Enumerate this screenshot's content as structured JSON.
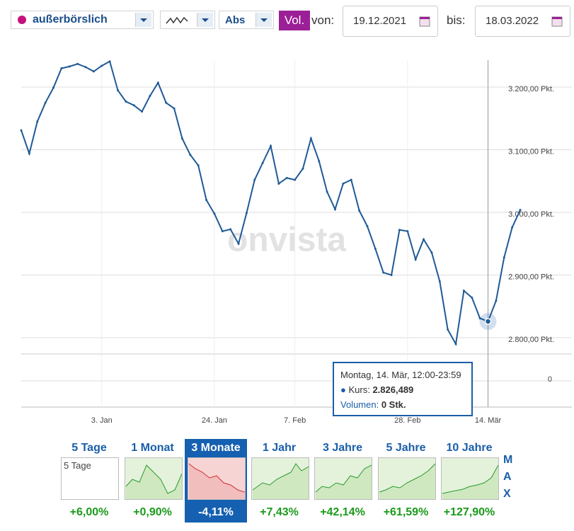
{
  "toolbar": {
    "exchange": "außerbörslich",
    "mode": "Abs",
    "volume": "Vol.",
    "from_label": "von:",
    "from": "19.12.2021",
    "to_label": "bis:",
    "to": "18.03.2022"
  },
  "chart_data": {
    "type": "line",
    "watermark": "onvista",
    "categories": [
      null,
      null,
      null,
      null,
      null,
      null,
      null,
      null,
      null,
      null,
      "3. Jan",
      null,
      null,
      null,
      null,
      null,
      null,
      null,
      null,
      null,
      null,
      null,
      null,
      null,
      "24. Jan",
      null,
      null,
      null,
      null,
      null,
      null,
      null,
      null,
      null,
      "7. Feb",
      null,
      null,
      null,
      null,
      null,
      null,
      null,
      null,
      null,
      null,
      null,
      null,
      null,
      "28. Feb",
      null,
      null,
      null,
      null,
      null,
      null,
      null,
      null,
      null,
      "14. Mär",
      null,
      null,
      null,
      null
    ],
    "series": [
      {
        "color": "#1f5a96",
        "values": [
          3131,
          3094,
          3145,
          3175,
          3199,
          3230,
          3233,
          3237,
          3232,
          3225,
          3234,
          3241,
          3195,
          3177,
          3171,
          3161,
          3186,
          3207,
          3175,
          3166,
          3118,
          3092,
          3075,
          3020,
          2998,
          2970,
          2973,
          2950,
          2999,
          3052,
          3079,
          3106,
          3046,
          3055,
          3052,
          3070,
          3118,
          3082,
          3033,
          3005,
          3046,
          3052,
          3003,
          2978,
          2942,
          2904,
          2900,
          2972,
          2970,
          2925,
          2957,
          2936,
          2890,
          2813,
          2790,
          2875,
          2864,
          2831,
          2826,
          2859,
          2928,
          2976,
          3004
        ]
      }
    ],
    "ylim": [
      2774,
      3243
    ],
    "yticks": [
      {
        "value": 2800,
        "label": "2.800,00 Pkt."
      },
      {
        "value": 2900,
        "label": "2.900,00 Pkt."
      },
      {
        "value": 3000,
        "label": "3.000,00 Pkt."
      },
      {
        "value": 3100,
        "label": "3.100,00 Pkt."
      },
      {
        "value": 3200,
        "label": "3.200,00 Pkt."
      }
    ],
    "volume_ticks": [
      0
    ],
    "grid": true
  },
  "tooltip": {
    "date": "Montag, 14. Mär, 12:00-23:59",
    "price_label": "Kurs:",
    "price": "2.826,489",
    "volume_label": "Volumen:",
    "volume": "0 Stk."
  },
  "periods": [
    {
      "label": "5 Tage",
      "change": "+6,00%",
      "placeholder": "5 Tage"
    },
    {
      "label": "1 Monat",
      "change": "+0,90%"
    },
    {
      "label": "3 Monate",
      "change": "-4,11%"
    },
    {
      "label": "1 Jahr",
      "change": "+7,43%"
    },
    {
      "label": "3 Jahre",
      "change": "+42,14%"
    },
    {
      "label": "5 Jahre",
      "change": "+61,59%"
    },
    {
      "label": "10 Jahre",
      "change": "+127,90%"
    }
  ],
  "max_label": [
    "M",
    "A",
    "X"
  ]
}
